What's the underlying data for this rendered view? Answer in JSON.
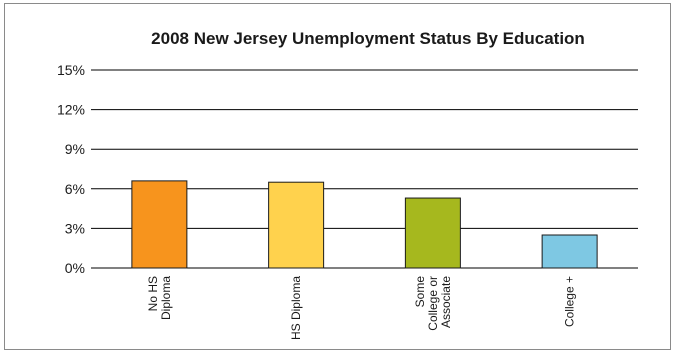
{
  "chart_data": {
    "type": "bar",
    "title": "2008 New Jersey Unemployment Status By Education",
    "xlabel": "",
    "ylabel": "",
    "categories": [
      "No HS Diploma",
      "HS Diploma",
      "Some College or Associate",
      "College +"
    ],
    "category_lines": [
      [
        "No HS",
        "Diploma"
      ],
      [
        "HS Diploma"
      ],
      [
        "Some",
        "College or",
        "Associate"
      ],
      [
        "College +"
      ]
    ],
    "values": [
      6.6,
      6.5,
      5.3,
      2.5
    ],
    "ylim": [
      0,
      15
    ],
    "yticks": [
      0,
      3,
      6,
      9,
      12,
      15
    ],
    "ytick_labels": [
      "0%",
      "3%",
      "6%",
      "9%",
      "12%",
      "15%"
    ],
    "grid": true,
    "colors": [
      "#f7941d",
      "#ffd24d",
      "#a6b81e",
      "#7ec8e3"
    ]
  }
}
